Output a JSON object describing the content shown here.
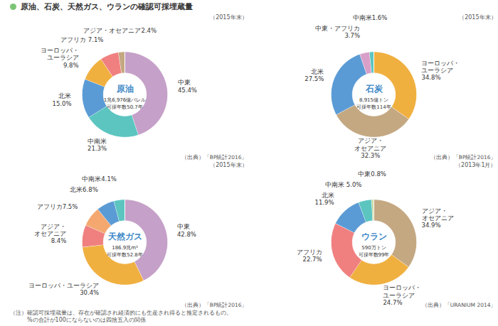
{
  "title": "原油、石炭、天然ガス、ウランの確認可採埋蔵量",
  "annotations": [
    "（注）確認可採埋蔵量は、存在が確認され経済的にも生産され得ると推定されるもの。",
    "　　　%の合計が100にならないのは四捨五入の関係"
  ],
  "chart_data": [
    {
      "type": "pie",
      "title": "原油",
      "subtitle": "1兆6,976億バレル\n可採年数50.7年",
      "annotations": [
        "（2015年末）",
        "（出典）「BP統計2016」"
      ],
      "categories": [
        "中東\n45.4%",
        "中南米\n21.3%",
        "北米\n15.0%",
        "ヨーロッパ・\nユーラシア\n9.8%",
        "アフリカ 7.1%",
        "アジア・オセアニア2.4%"
      ],
      "values": [
        45.4,
        21.3,
        15.0,
        9.8,
        7.1,
        2.4
      ],
      "colors": [
        "#C5A0C8",
        "#5CC5C0",
        "#5B9BD5",
        "#F0B040",
        "#F08080",
        "#C4A882"
      ]
    },
    {
      "type": "pie",
      "title": "石炭",
      "subtitle": "8,915億トン\n可採年数114年",
      "annotations": [
        "（2015年末）",
        "（出典）「BP統計2016」"
      ],
      "categories": [
        "ヨーロッパ・\nユーラシア\n34.8%",
        "アジア・\nオセアニア\n32.3%",
        "北米\n27.5%",
        "中東・アフリカ\n3.7%",
        "中南米1.6%"
      ],
      "values": [
        34.8,
        32.3,
        27.5,
        3.7,
        1.6
      ],
      "colors": [
        "#F0B040",
        "#C4A882",
        "#5B9BD5",
        "#D8A0C8",
        "#5CC5C0"
      ]
    },
    {
      "type": "pie",
      "title": "天然ガス",
      "subtitle": "186.9兆m³\n可採年数52.8年",
      "annotations": [
        "（2015年末）",
        "（出典）「BP統計2016」"
      ],
      "categories": [
        "中東\n42.8%",
        "ヨーロッパ・ユーラシア\n30.4%",
        "アジア・\nオセアニア\n8.4%",
        "アフリカ7.5%",
        "北米6.8%",
        "中南米4.1%"
      ],
      "values": [
        42.8,
        30.4,
        8.4,
        7.5,
        6.8,
        4.1
      ],
      "colors": [
        "#C5A0C8",
        "#F0B040",
        "#F08080",
        "#F4A870",
        "#5B9BD5",
        "#5CC5C0"
      ]
    },
    {
      "type": "pie",
      "title": "ウラン",
      "subtitle": "590万トン\n可採年数99年",
      "annotations": [
        "（2013年1月）",
        "（出典）「URANIUM 2014」"
      ],
      "categories": [
        "アジア・\nオセアニア\n34.9%",
        "ヨーロッパ・\nユーラシア\n24.7%",
        "アフリカ\n22.7%",
        "北米\n11.9%",
        "中南米 5.0%",
        "中東0.8%"
      ],
      "values": [
        34.9,
        24.7,
        22.7,
        11.9,
        5.0,
        0.8
      ],
      "colors": [
        "#C4A882",
        "#F0B040",
        "#F08080",
        "#5B9BD5",
        "#5CC5C0",
        "#C8D8A0"
      ]
    }
  ]
}
